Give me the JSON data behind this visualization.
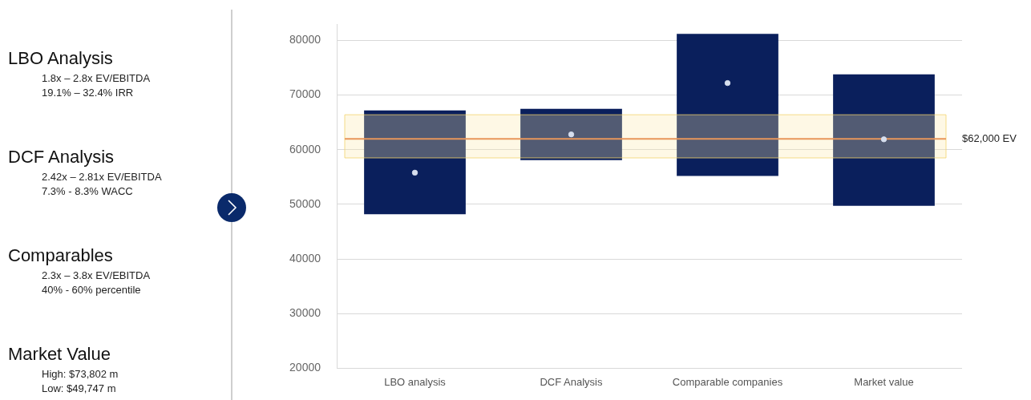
{
  "chart_data": {
    "type": "bar",
    "categories": [
      "LBO analysis",
      "DCF Analysis",
      "Comparable companies",
      "Market value"
    ],
    "series": [
      {
        "color": "#0a1f5c",
        "base": [
          48200,
          58100,
          55200,
          49747
        ],
        "values": [
          19000,
          9400,
          26000,
          24055
        ]
      },
      {
        "type": "scatter",
        "color": "#d6deee",
        "x": [
          "LBO analysis",
          "DCF Analysis",
          "Comparable companies",
          "Market value"
        ],
        "values": [
          55800,
          62800,
          72200,
          61900
        ]
      }
    ],
    "ylim": [
      20000,
      83000
    ],
    "yticks": [
      20000,
      30000,
      40000,
      50000,
      60000,
      70000,
      80000
    ],
    "grid": "y",
    "legend": false,
    "marker": "circle",
    "ref_lines": [
      {
        "axis": "y",
        "value": 62000,
        "label": "$62,000 EV",
        "color": "#e8965a"
      }
    ],
    "bands": [
      {
        "axis": "y",
        "from": 58500,
        "to": 66400,
        "color": "#fde9a8"
      }
    ],
    "annotations": [
      "LBO Analysis",
      "1.8x – 2.8x EV/EBITDA",
      "19.1% – 32.4% IRR",
      "DCF Analysis",
      "2.42x – 2.81x EV/EBITDA",
      "7.3% - 8.3% WACC",
      "Comparables",
      "2.3x – 3.8x EV/EBITDA",
      "40% - 60% percentile",
      "Market Value",
      "High: $73,802 m",
      "Low: $49,747 m"
    ]
  }
}
